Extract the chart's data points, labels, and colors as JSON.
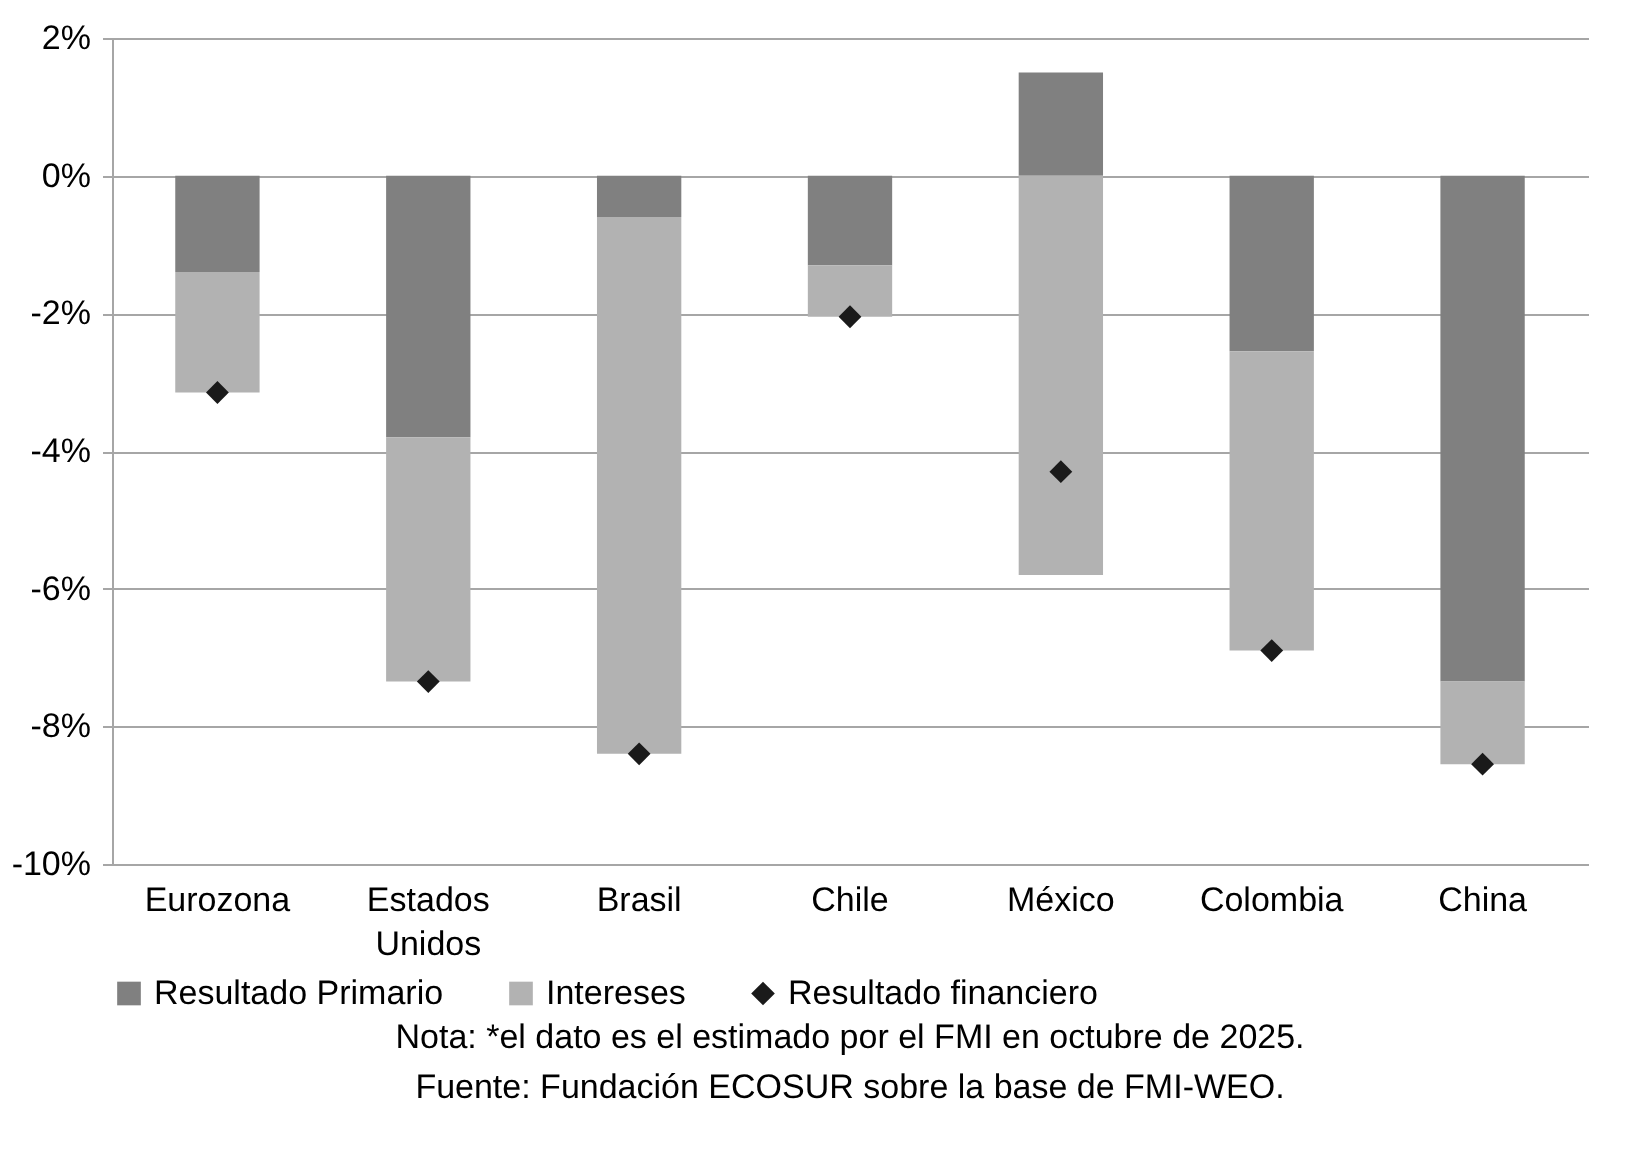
{
  "chart_data": {
    "type": "bar",
    "stacked": true,
    "categories": [
      "Eurozona",
      "Estados Unidos",
      "Brasil",
      "Chile",
      "México",
      "Colombia",
      "China"
    ],
    "series": [
      {
        "name": "Resultado Primario",
        "color": "#808080",
        "values": [
          -1.4,
          -3.8,
          -0.6,
          -1.3,
          1.5,
          -2.55,
          -7.35
        ]
      },
      {
        "name": "Intereses",
        "color": "#b2b2b2",
        "values": [
          -1.75,
          -3.55,
          -7.8,
          -0.75,
          -5.8,
          -4.35,
          -1.2
        ]
      },
      {
        "name": "Resultado financiero",
        "type": "scatter",
        "color": "#1a1a1a",
        "values": [
          -3.15,
          -7.35,
          -8.4,
          -2.05,
          -4.3,
          -6.9,
          -8.55
        ]
      }
    ],
    "marker": "diamond",
    "ylim": [
      -10,
      2
    ],
    "yticks": [
      {
        "value": -10,
        "label": "-10%"
      },
      {
        "value": -8,
        "label": "-8%"
      },
      {
        "value": -6,
        "label": "-6%"
      },
      {
        "value": -4,
        "label": "-4%"
      },
      {
        "value": -2,
        "label": "-2%"
      },
      {
        "value": 0,
        "label": "0%"
      },
      {
        "value": 2,
        "label": "2%"
      }
    ],
    "grid": "y",
    "legend": "bottom",
    "annotations": [
      "Nota: *el dato es el estimado por el FMI en octubre de 2025.",
      "Fuente: Fundación ECOSUR sobre la base de FMI-WEO."
    ]
  }
}
